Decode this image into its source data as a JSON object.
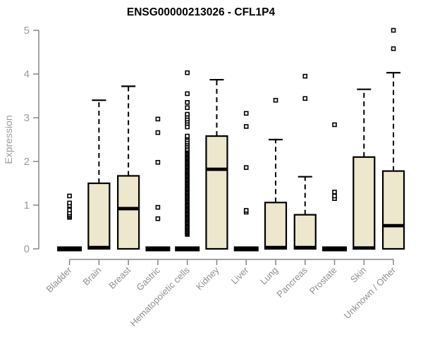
{
  "chart_data": {
    "type": "boxplot",
    "title": "ENSG00000213026 - CFL1P4",
    "ylabel": "Expression",
    "xlabel": "",
    "ylim": [
      0,
      5
    ],
    "yticks": [
      0,
      1,
      2,
      3,
      4,
      5
    ],
    "grid": false,
    "legend": "none",
    "colors": {
      "box_fill": "#ece7cd",
      "box_border": "#000000",
      "median": "#000000",
      "whisker": "#000000",
      "axis": "#858585",
      "y_tick_label": "#9c9c9c",
      "x_tick_label": "#8f8f8f",
      "title": "#000000",
      "background": "#ffffff"
    },
    "categories": [
      "Bladder",
      "Brain",
      "Breast",
      "Gastric",
      "Hematopoietic cells",
      "Kidney",
      "Liver",
      "Lung",
      "Pancreas",
      "Prostate",
      "Skin",
      "Unknown / Other"
    ],
    "boxes": [
      {
        "category": "Bladder",
        "low": 0,
        "q1": 0,
        "median": 0,
        "q3": 0,
        "high": 0,
        "outliers": [
          0.72,
          0.75,
          0.78,
          0.82,
          0.89,
          0.99,
          1.05,
          1.21
        ]
      },
      {
        "category": "Brain",
        "low": 0,
        "q1": 0,
        "median": 0.03,
        "q3": 1.5,
        "high": 3.4,
        "outliers": []
      },
      {
        "category": "Breast",
        "low": 0,
        "q1": 0,
        "median": 0.92,
        "q3": 1.67,
        "high": 3.72,
        "outliers": []
      },
      {
        "category": "Gastric",
        "low": 0,
        "q1": 0,
        "median": 0,
        "q3": 0,
        "high": 0,
        "outliers": [
          0.69,
          0.95,
          1.98,
          2.66,
          2.97
        ]
      },
      {
        "category": "Hematopoietic cells",
        "low": 0,
        "q1": 0,
        "median": 0,
        "q3": 0,
        "high": 0,
        "outliers": [
          2.33,
          2.37,
          2.41,
          2.45,
          2.5,
          2.55,
          2.58,
          2.79,
          2.87,
          2.92,
          2.97,
          3.03,
          3.08,
          3.23,
          3.35,
          3.55,
          4.03
        ],
        "outlier_stack": {
          "min": 0.33,
          "max": 2.28,
          "count": 75
        }
      },
      {
        "category": "Kidney",
        "low": 0,
        "q1": 0,
        "median": 1.82,
        "q3": 2.58,
        "high": 3.87,
        "outliers": []
      },
      {
        "category": "Liver",
        "low": 0,
        "q1": 0,
        "median": 0,
        "q3": 0,
        "high": 0,
        "outliers": [
          0.84,
          0.88,
          1.86,
          2.8,
          3.1
        ]
      },
      {
        "category": "Lung",
        "low": 0,
        "q1": 0,
        "median": 0.03,
        "q3": 1.06,
        "high": 2.5,
        "outliers": [
          3.4
        ]
      },
      {
        "category": "Pancreas",
        "low": 0,
        "q1": 0,
        "median": 0.03,
        "q3": 0.78,
        "high": 1.65,
        "outliers": [
          3.44,
          3.95
        ]
      },
      {
        "category": "Prostate",
        "low": 0,
        "q1": 0,
        "median": 0,
        "q3": 0,
        "high": 0,
        "outliers": [
          1.15,
          1.21,
          1.3,
          2.84
        ]
      },
      {
        "category": "Skin",
        "low": 0,
        "q1": 0,
        "median": 0.02,
        "q3": 2.1,
        "high": 3.65,
        "outliers": []
      },
      {
        "category": "Unknown / Other",
        "low": 0,
        "q1": 0,
        "median": 0.53,
        "q3": 1.78,
        "high": 4.03,
        "outliers": [
          4.58,
          5.0
        ]
      }
    ]
  }
}
